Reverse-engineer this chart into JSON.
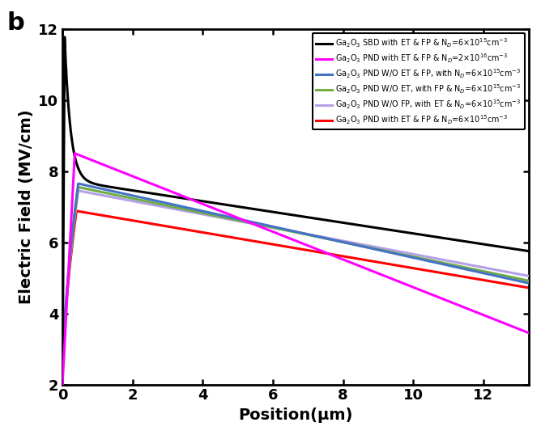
{
  "title_label": "b",
  "xlabel": "Position(μm)",
  "ylabel": "Electric Field (MV/cm)",
  "xlim": [
    0,
    13.3
  ],
  "ylim": [
    2,
    12
  ],
  "yticks": [
    2,
    4,
    6,
    8,
    10,
    12
  ],
  "xticks": [
    0,
    2,
    4,
    6,
    8,
    10,
    12
  ],
  "legend": [
    {
      "label": "Ga$_2$O$_3$ SBD with ET & FP & N$_D$=6×10$^{15}$cm$^{-3}$",
      "color": "#000000",
      "lw": 2.2
    },
    {
      "label": "Ga$_2$O$_3$ PND with ET & FP & N$_D$=2×10$^{16}$cm$^{-3}$",
      "color": "#FF00FF",
      "lw": 2.2
    },
    {
      "label": "Ga$_2$O$_3$ PND W/O ET & FP, with N$_D$=6×10$^{15}$cm$^{-3}$",
      "color": "#4472C4",
      "lw": 2.2
    },
    {
      "label": "Ga$_2$O$_3$ PND W/O ET, with FP & N$_D$=6×10$^{15}$cm$^{-3}$",
      "color": "#70AD47",
      "lw": 2.2
    },
    {
      "label": "Ga$_2$O$_3$ PND W/O FP, with ET & N$_D$=6×10$^{15}$cm$^{-3}$",
      "color": "#B4A0E5",
      "lw": 2.2
    },
    {
      "label": "Ga$_2$O$_3$ PND with ET & FP & N$_D$=6×10$^{15}$cm$^{-3}$",
      "color": "#FF0000",
      "lw": 2.2
    }
  ],
  "background_color": "#FFFFFF"
}
